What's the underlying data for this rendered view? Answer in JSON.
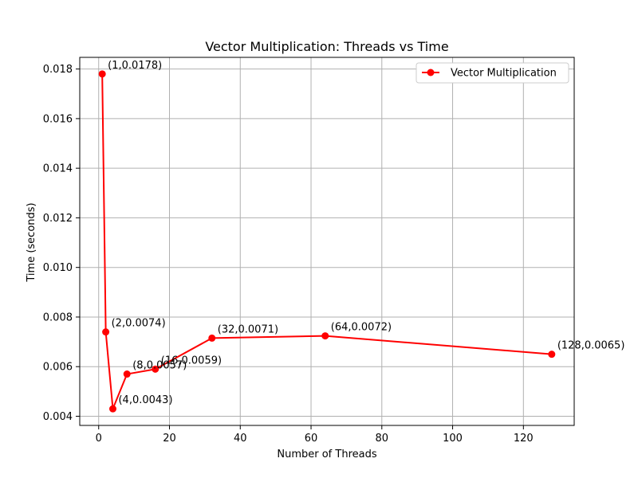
{
  "chart_data": {
    "type": "line",
    "title": "Vector Multiplication: Threads vs Time",
    "xlabel": "Number of Threads",
    "ylabel": "Time (seconds)",
    "xlim": [
      -5.35,
      134.35
    ],
    "ylim": [
      0.00363,
      0.01847
    ],
    "xticks": [
      0,
      20,
      40,
      60,
      80,
      100,
      120
    ],
    "yticks": [
      0.004,
      0.006,
      0.008,
      0.01,
      0.012,
      0.014,
      0.016,
      0.018
    ],
    "ytick_labels": [
      "0.004",
      "0.006",
      "0.008",
      "0.010",
      "0.012",
      "0.014",
      "0.016",
      "0.018"
    ],
    "grid": true,
    "legend_position": "top-right",
    "series": [
      {
        "name": "Vector Multiplication",
        "color": "#ff0000",
        "marker": "circle",
        "x": [
          1,
          2,
          4,
          8,
          16,
          32,
          64,
          128
        ],
        "y": [
          0.0178,
          0.0074,
          0.0043,
          0.0057,
          0.0059,
          0.00715,
          0.00724,
          0.0065
        ]
      }
    ],
    "annotations": [
      "(1,0.0178)",
      "(2,0.0074)",
      "(4,0.0043)",
      "(8,0.0057)",
      "(16,0.0059)",
      "(32,0.0071)",
      "(64,0.0072)",
      "(128,0.0065)"
    ]
  }
}
